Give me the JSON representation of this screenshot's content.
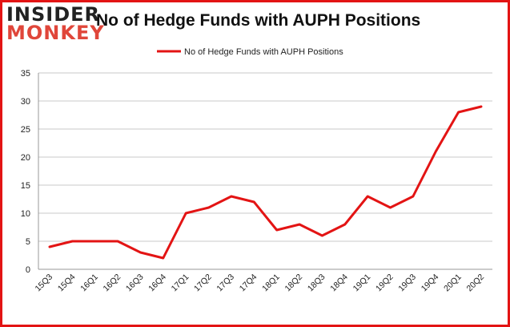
{
  "logo": {
    "line1": "INSIDER",
    "line2": "MONKEY"
  },
  "colors": {
    "series": "#e31414",
    "border": "#e31414",
    "grid": "#c8c8c8",
    "text": "#222222"
  },
  "chart_data": {
    "type": "line",
    "title": "No of Hedge Funds with AUPH Positions",
    "xlabel": "",
    "ylabel": "",
    "ylim": [
      0,
      35
    ],
    "yticks": [
      0,
      5,
      10,
      15,
      20,
      25,
      30,
      35
    ],
    "grid": true,
    "legend_position": "top-center",
    "categories": [
      "15Q3",
      "15Q4",
      "16Q1",
      "16Q2",
      "16Q3",
      "16Q4",
      "17Q1",
      "17Q2",
      "17Q3",
      "17Q4",
      "18Q1",
      "18Q2",
      "18Q3",
      "18Q4",
      "19Q1",
      "19Q2",
      "19Q3",
      "19Q4",
      "20Q1",
      "20Q2"
    ],
    "series": [
      {
        "name": "No of Hedge Funds with AUPH Positions",
        "values": [
          4,
          5,
          5,
          5,
          3,
          2,
          10,
          11,
          13,
          12,
          7,
          8,
          6,
          8,
          13,
          11,
          13,
          21,
          28,
          29
        ]
      }
    ]
  }
}
